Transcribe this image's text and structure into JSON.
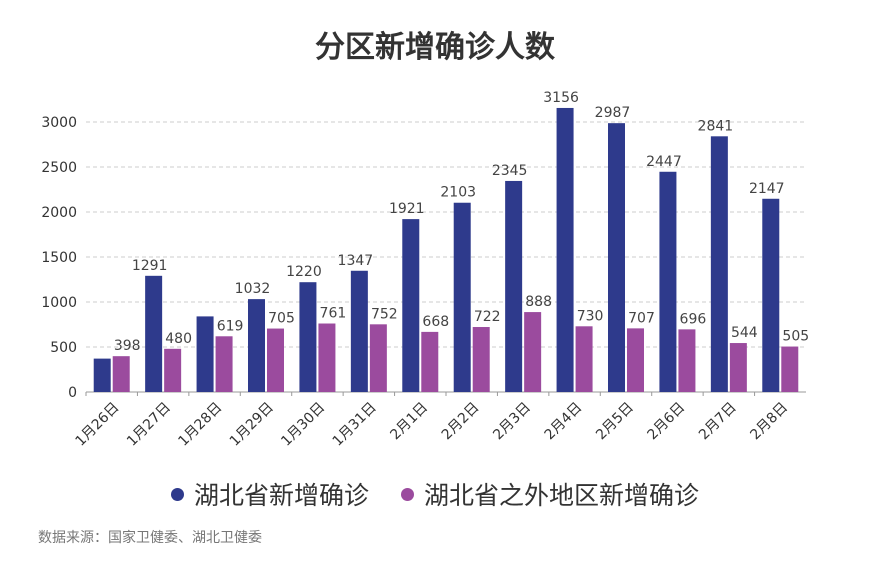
{
  "chart_data": {
    "type": "bar",
    "title": "分区新增确诊人数",
    "categories": [
      "1月26日",
      "1月27日",
      "1月28日",
      "1月29日",
      "1月30日",
      "1月31日",
      "2月1日",
      "2月2日",
      "2月3日",
      "2月4日",
      "2月5日",
      "2月6日",
      "2月7日",
      "2月8日"
    ],
    "series": [
      {
        "name": "湖北省新增确诊",
        "color": "#2e3a8c",
        "values": [
          371,
          1291,
          840,
          1032,
          1220,
          1347,
          1921,
          2103,
          2345,
          3156,
          2987,
          2447,
          2841,
          2147
        ],
        "labels": [
          "",
          "1291",
          "",
          "1032",
          "1220",
          "1347",
          "1921",
          "2103",
          "2345",
          "3156",
          "2987",
          "2447",
          "2841",
          "2147"
        ]
      },
      {
        "name": "湖北省之外地区新增确诊",
        "color": "#9b4b9e",
        "values": [
          398,
          480,
          619,
          705,
          761,
          752,
          668,
          722,
          888,
          730,
          707,
          696,
          544,
          505
        ],
        "labels": [
          "398",
          "480",
          "619",
          "705",
          "761",
          "752",
          "668",
          "722",
          "888",
          "730",
          "707",
          "696",
          "544",
          "505"
        ]
      }
    ],
    "yticks": [
      0,
      500,
      1000,
      1500,
      2000,
      2500,
      3000
    ],
    "ylim": [
      0,
      3000
    ],
    "grid": true,
    "legend_position": "bottom"
  },
  "source": "数据来源：国家卫健委、湖北卫健委"
}
